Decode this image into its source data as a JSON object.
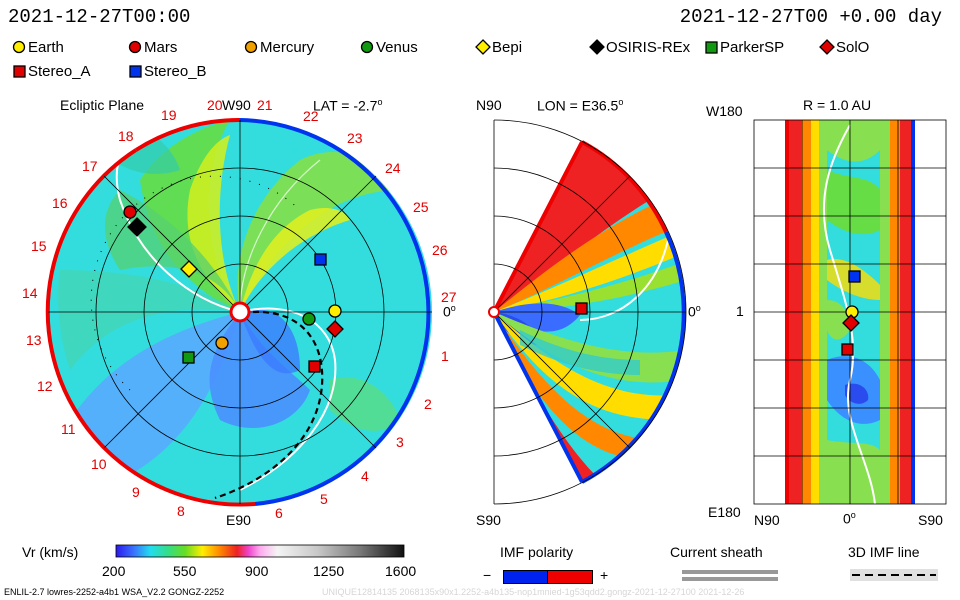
{
  "header": {
    "left_time": "2021-12-27T00:00",
    "right_time": "2021-12-27T00 +0.00 day"
  },
  "legend": {
    "row1": [
      {
        "name": "Earth",
        "marker": "circle",
        "color": "#ffee00"
      },
      {
        "name": "Mars",
        "marker": "circle",
        "color": "#e00000"
      },
      {
        "name": "Mercury",
        "marker": "circle",
        "color": "#f0a000"
      },
      {
        "name": "Venus",
        "marker": "circle",
        "color": "#119911"
      },
      {
        "name": "Bepi",
        "marker": "diamond",
        "color": "#ffee00"
      },
      {
        "name": "OSIRIS-REx",
        "marker": "diamond",
        "color": "#000000"
      },
      {
        "name": "ParkerSP",
        "marker": "square",
        "color": "#119911"
      },
      {
        "name": "SolO",
        "marker": "diamond",
        "color": "#e00000"
      }
    ],
    "row2": [
      {
        "name": "Stereo_A",
        "marker": "square",
        "color": "#e00000"
      },
      {
        "name": "Stereo_B",
        "marker": "square",
        "color": "#0033ee"
      }
    ]
  },
  "panel_left": {
    "title": "Ecliptic Plane",
    "top_label": "W90",
    "lat_label": "LAT = -2.7",
    "bottom_label": "E90",
    "right_label": "0",
    "degree_mark": "o",
    "hour_labels": [
      "1",
      "2",
      "3",
      "4",
      "5",
      "6",
      "8",
      "9",
      "10",
      "11",
      "12",
      "13",
      "14",
      "15",
      "16",
      "17",
      "18",
      "19",
      "20",
      "21",
      "22",
      "23",
      "24",
      "25",
      "26",
      "27"
    ]
  },
  "panel_mid": {
    "top_left": "N90",
    "lon_label": "LON = E36.5",
    "bottom_left": "S90",
    "right_label": "0",
    "degree_mark": "o"
  },
  "panel_right": {
    "top_left": "W180",
    "r_label": "R = 1.0 AU",
    "left_mid": "1",
    "bottom_left": "E180",
    "x_labels": [
      "N90",
      "0",
      "S90"
    ],
    "degree_mark": "o"
  },
  "colorbar": {
    "label": "Vr (km/s)",
    "ticks": [
      "200",
      "550",
      "900",
      "1250",
      "1600"
    ]
  },
  "imf": {
    "title": "IMF polarity",
    "minus": "−",
    "plus": "+",
    "negative_color": "#0022ee",
    "positive_color": "#ee0000"
  },
  "sheath": {
    "title": "Current sheath"
  },
  "imf_line": {
    "title": "3D IMF line"
  },
  "footer": {
    "left": "ENLIL-2.7 lowres-2252-a4b1 WSA_V2.2 GONGZ-2252",
    "right": "UNIQUE12814135 2068135x90x1.2252-a4b135-nop1mnied-1g53qdd2.gongz-2021-12-27100   2021-12-26"
  },
  "chart_data": [
    {
      "type": "heatmap",
      "title": "Ecliptic Plane",
      "variable": "Vr (km/s)",
      "color_range": [
        200,
        1600
      ],
      "bodies_present": [
        "Earth",
        "Mars",
        "Mercury",
        "Venus",
        "Bepi",
        "OSIRIS-REx",
        "ParkerSP",
        "SolO",
        "Stereo_A",
        "Stereo_B"
      ]
    },
    {
      "type": "heatmap",
      "title": "LON = E36.5",
      "variable": "Vr (km/s)",
      "color_range": [
        200,
        1600
      ],
      "bodies_present": [
        "Stereo_A"
      ]
    },
    {
      "type": "heatmap",
      "title": "R = 1.0 AU",
      "variable": "Vr (km/s)",
      "color_range": [
        200,
        1600
      ],
      "bodies_present": [
        "Earth",
        "SolO",
        "Stereo_A",
        "Stereo_B"
      ]
    }
  ]
}
